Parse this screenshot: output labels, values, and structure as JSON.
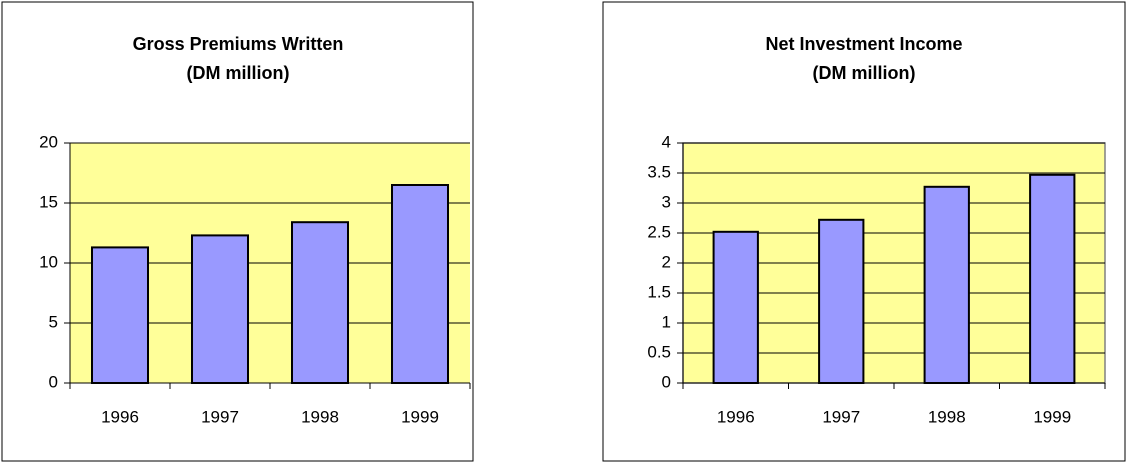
{
  "chart_data": [
    {
      "type": "bar",
      "title": "Gross Premiums Written",
      "subtitle": "(DM million)",
      "categories": [
        "1996",
        "1997",
        "1998",
        "1999"
      ],
      "values": [
        11.3,
        12.3,
        13.4,
        16.5
      ],
      "color": "#9999ff",
      "ylim": [
        0,
        20
      ],
      "yticks": [
        0,
        5,
        10,
        15,
        20
      ],
      "grid": true,
      "plot_border": false
    },
    {
      "type": "bar",
      "title": "Net Investment Income",
      "subtitle": "(DM million)",
      "categories": [
        "1996",
        "1997",
        "1998",
        "1999"
      ],
      "values": [
        2.52,
        2.72,
        3.27,
        3.47
      ],
      "color": "#9999ff",
      "ylim": [
        0,
        4
      ],
      "yticks": [
        0,
        0.5,
        1,
        1.5,
        2,
        2.5,
        3,
        3.5,
        4
      ],
      "grid": true,
      "plot_border": true
    }
  ]
}
